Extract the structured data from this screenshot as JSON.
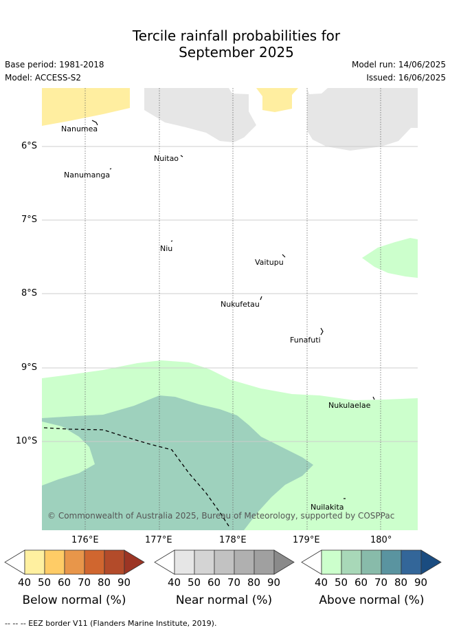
{
  "title": {
    "line1": "Tercile rainfall probabilities for",
    "line2": "September 2025"
  },
  "meta": {
    "base_period": "Base period: 1981-2018",
    "model": "Model: ACCESS-S2",
    "model_run": "Model run: 14/06/2025",
    "issued": "Issued: 16/06/2025"
  },
  "map": {
    "lat_labels": [
      "6°S",
      "7°S",
      "8°S",
      "9°S",
      "10°S"
    ],
    "lon_labels": [
      "176°E",
      "177°E",
      "178°E",
      "179°E",
      "180°"
    ],
    "islands": [
      {
        "name": "Nanumea"
      },
      {
        "name": "Nuitao"
      },
      {
        "name": "Nanumanga"
      },
      {
        "name": "Niu"
      },
      {
        "name": "Vaitupu"
      },
      {
        "name": "Nukufetau"
      },
      {
        "name": "Funafuti"
      },
      {
        "name": "Nukulaelae"
      },
      {
        "name": "Nuilakita"
      }
    ],
    "copyright": "© Commonwealth of Australia 2025, Bureau of Meteorology, supported by COSPPac"
  },
  "colorbars": [
    {
      "label": "Below normal (%)",
      "ticks": [
        "40",
        "50",
        "60",
        "70",
        "80",
        "90"
      ],
      "colors": [
        "#ffffff",
        "#fff0a0",
        "#ffcc66",
        "#e8964a",
        "#d0662f",
        "#b34b2a",
        "#9c3524"
      ]
    },
    {
      "label": "Near normal (%)",
      "ticks": [
        "40",
        "50",
        "60",
        "70",
        "80",
        "90"
      ],
      "colors": [
        "#ffffff",
        "#e6e6e6",
        "#d4d4d4",
        "#c2c2c2",
        "#b0b0b0",
        "#a0a0a0",
        "#8a8a8a"
      ]
    },
    {
      "label": "Above normal (%)",
      "ticks": [
        "40",
        "50",
        "60",
        "70",
        "80",
        "90"
      ],
      "colors": [
        "#ffffff",
        "#ccffcc",
        "#a8d8b8",
        "#88bbaa",
        "#5a94a0",
        "#336699",
        "#1a4c80"
      ]
    }
  ],
  "footer": {
    "eez_note": "--  --  -- EEZ border V11 (Flanders Marine Institute, 2019)."
  },
  "colors": {
    "below_40_50": "#ffeea0",
    "near_40_50": "#e6e6e6",
    "above_40_50": "#ccffcc",
    "above_50_60": "#9ed1bd"
  }
}
